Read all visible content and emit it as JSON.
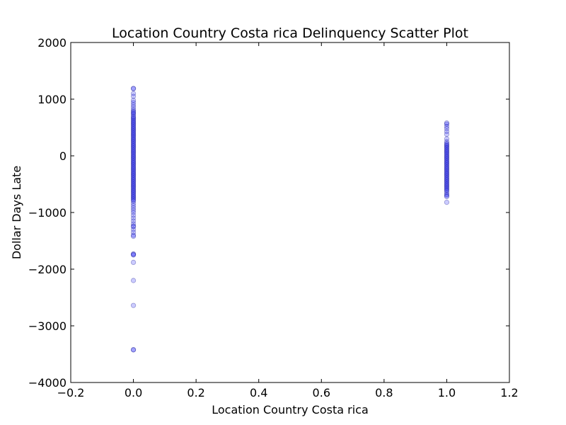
{
  "chart_data": {
    "type": "scatter",
    "title": "Location Country Costa rica Delinquency Scatter Plot",
    "xlabel": "Location Country Costa rica",
    "ylabel": "Dollar Days Late",
    "xlim": [
      -0.2,
      1.2
    ],
    "ylim": [
      -4000,
      2000
    ],
    "xticks": [
      -0.2,
      0.0,
      0.2,
      0.4,
      0.6,
      0.8,
      1.0,
      1.2
    ],
    "xtick_labels": [
      "−0.2",
      "0.0",
      "0.2",
      "0.4",
      "0.6",
      "0.8",
      "1.0",
      "1.2"
    ],
    "yticks": [
      -4000,
      -3000,
      -2000,
      -1000,
      0,
      1000,
      2000
    ],
    "ytick_labels": [
      "−4000",
      "−3000",
      "−2000",
      "−1000",
      "0",
      "1000",
      "2000"
    ],
    "grid": false,
    "legend": "none",
    "marker_color": "#0000ff",
    "marker_edge_color": "#000080",
    "marker_alpha": 0.2,
    "series": [
      {
        "x_value": 0,
        "y": [
          1190,
          1185,
          1100,
          1050,
          980,
          940,
          900,
          860,
          820,
          790,
          770,
          750,
          730,
          700,
          680,
          660,
          640,
          620,
          600,
          580,
          560,
          540,
          520,
          500,
          480,
          460,
          440,
          420,
          400,
          380,
          360,
          340,
          320,
          300,
          280,
          260,
          240,
          220,
          200,
          180,
          160,
          140,
          120,
          100,
          80,
          60,
          40,
          20,
          0,
          -20,
          -40,
          -60,
          -80,
          -100,
          -120,
          -140,
          -160,
          -180,
          -200,
          -220,
          -240,
          -260,
          -280,
          -300,
          -320,
          -340,
          -360,
          -380,
          -400,
          -420,
          -440,
          -460,
          -480,
          -500,
          -520,
          -540,
          -560,
          -580,
          -600,
          -620,
          -640,
          -660,
          -680,
          -700,
          -720,
          -740,
          -760,
          -780,
          -800,
          -840,
          -880,
          -920,
          -960,
          -1000,
          -1050,
          -1100,
          -1150,
          -1200,
          -1240,
          -1250,
          -1300,
          -1350,
          -1400,
          -1420,
          -1730,
          -1740,
          -1750,
          -1880,
          -2200,
          -2640,
          -3420,
          -3425
        ]
      },
      {
        "x_value": 1,
        "y": [
          580,
          560,
          520,
          480,
          430,
          380,
          300,
          250,
          220,
          200,
          180,
          160,
          140,
          120,
          100,
          80,
          60,
          40,
          20,
          0,
          -20,
          -40,
          -60,
          -80,
          -100,
          -120,
          -140,
          -160,
          -180,
          -200,
          -220,
          -240,
          -260,
          -280,
          -300,
          -320,
          -340,
          -360,
          -380,
          -400,
          -420,
          -440,
          -460,
          -480,
          -500,
          -520,
          -540,
          -560,
          -580,
          -600,
          -620,
          -650,
          -680,
          -700,
          -720,
          -820
        ]
      }
    ]
  }
}
